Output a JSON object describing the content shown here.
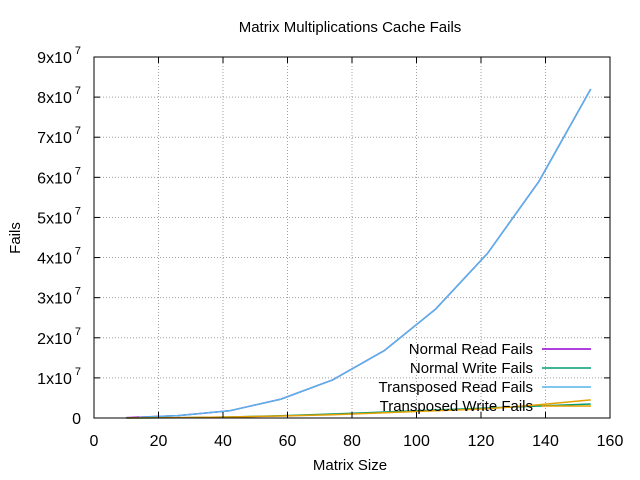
{
  "chart_data": {
    "type": "line",
    "title": "Matrix Multiplications Cache Fails",
    "xlabel": "Matrix Size",
    "ylabel": "Fails",
    "xlim": [
      0,
      160
    ],
    "ylim": [
      0,
      90000000
    ],
    "x_ticks": [
      0,
      20,
      40,
      60,
      80,
      100,
      120,
      140,
      160
    ],
    "y_ticks": [
      {
        "value": 0,
        "mantissa": "0",
        "exp": ""
      },
      {
        "value": 10000000,
        "mantissa": "1x10",
        "exp": "7"
      },
      {
        "value": 20000000,
        "mantissa": "2x10",
        "exp": "7"
      },
      {
        "value": 30000000,
        "mantissa": "3x10",
        "exp": "7"
      },
      {
        "value": 40000000,
        "mantissa": "4x10",
        "exp": "7"
      },
      {
        "value": 50000000,
        "mantissa": "5x10",
        "exp": "7"
      },
      {
        "value": 60000000,
        "mantissa": "6x10",
        "exp": "7"
      },
      {
        "value": 70000000,
        "mantissa": "7x10",
        "exp": "7"
      },
      {
        "value": 80000000,
        "mantissa": "8x10",
        "exp": "7"
      },
      {
        "value": 90000000,
        "mantissa": "9x10",
        "exp": "7"
      }
    ],
    "grid": true,
    "legend_position": "bottom-right",
    "series": [
      {
        "name": "Normal Read Fails",
        "color": "#9400d3",
        "x": [
          10,
          26,
          42,
          58,
          74,
          90,
          106,
          122,
          138,
          154
        ],
        "values": [
          100000,
          600000,
          1800000,
          4700000,
          9500000,
          16800000,
          27200000,
          41000000,
          59000000,
          82000000
        ]
      },
      {
        "name": "Normal Write Fails",
        "color": "#009e73",
        "x": [
          10,
          26,
          42,
          58,
          74,
          90,
          106,
          122,
          138,
          154
        ],
        "values": [
          10000,
          80000,
          250000,
          550000,
          1000000,
          1500000,
          2000000,
          2500000,
          3000000,
          3500000
        ]
      },
      {
        "name": "Transposed Read Fails",
        "color": "#56b4e9",
        "x": [
          14,
          26,
          42,
          58,
          74,
          90,
          106,
          122,
          138,
          154
        ],
        "values": [
          200000,
          600000,
          1800000,
          4700000,
          9500000,
          16800000,
          27200000,
          41000000,
          59000000,
          82000000
        ]
      },
      {
        "name": "Transposed Write Fails",
        "color": "#e69f00",
        "x": [
          10,
          26,
          42,
          58,
          74,
          90,
          106,
          122,
          138,
          154
        ],
        "values": [
          10000,
          100000,
          250000,
          500000,
          800000,
          1300000,
          1800000,
          2300000,
          3300000,
          4500000
        ]
      }
    ]
  }
}
